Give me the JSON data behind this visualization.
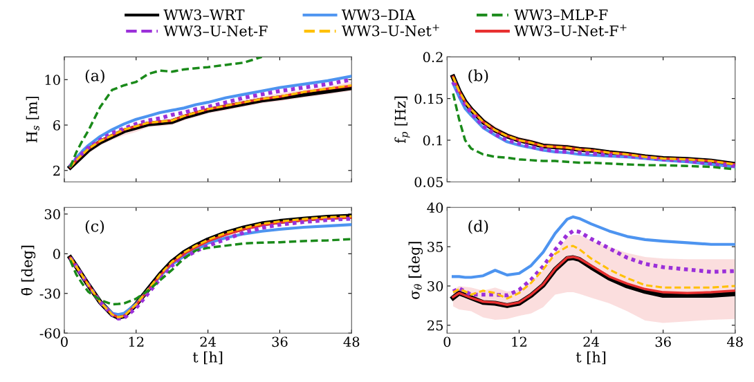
{
  "chart_data": [
    {
      "type": "line",
      "ylabel": "H$_{s}$ [m]",
      "annotations": [
        "(a)"
      ],
      "legend": "top",
      "tick_labels": "y",
      "xlim": [
        0,
        48
      ],
      "xticks": [
        0,
        12,
        24,
        36,
        48
      ],
      "ylim": [
        1,
        12
      ],
      "yticks": [
        2,
        6,
        10
      ],
      "x": [
        1,
        2,
        3,
        4,
        6,
        8,
        10,
        12,
        14,
        16,
        18,
        20,
        22,
        24,
        27,
        30,
        33,
        36,
        40,
        44,
        48
      ],
      "series": [
        {
          "name": "WW3–WRT",
          "color": "#000000",
          "line_style": "solid",
          "values": [
            2.3,
            2.8,
            3.3,
            3.8,
            4.5,
            5.0,
            5.5,
            5.8,
            6.1,
            6.2,
            6.3,
            6.7,
            7.0,
            7.3,
            7.6,
            7.9,
            8.2,
            8.4,
            8.7,
            9.0,
            9.3
          ]
        },
        {
          "name": "WW3–DIA",
          "color": "#4d94f0",
          "line_style": "solid",
          "values": [
            2.4,
            3.1,
            3.7,
            4.2,
            5.0,
            5.6,
            6.1,
            6.5,
            6.8,
            7.1,
            7.3,
            7.5,
            7.8,
            8.0,
            8.4,
            8.7,
            9.0,
            9.3,
            9.6,
            9.9,
            10.3
          ]
        },
        {
          "name": "WW3–MLP-F",
          "color": "#1a8a1a",
          "line_style": "dashed",
          "values": [
            2.3,
            3.6,
            4.6,
            5.5,
            7.6,
            9.1,
            9.5,
            9.8,
            10.5,
            10.8,
            10.7,
            10.9,
            11.0,
            11.1,
            11.3,
            11.5,
            12.0,
            null,
            null,
            null,
            null
          ]
        },
        {
          "name": "WW3–U-Net-F",
          "color": "#9b30d9",
          "line_style": "dotted",
          "values": [
            2.4,
            3.0,
            3.5,
            4.0,
            4.7,
            5.3,
            5.7,
            6.1,
            6.4,
            6.6,
            6.9,
            7.1,
            7.4,
            7.6,
            8.0,
            8.4,
            8.7,
            9.0,
            9.3,
            9.6,
            10.0
          ]
        },
        {
          "name": "WW3–U-Net$^{+}$",
          "color": "#ffc000",
          "line_style": "dashed",
          "values": [
            2.3,
            2.9,
            3.4,
            3.9,
            4.6,
            5.1,
            5.6,
            5.9,
            6.2,
            6.3,
            6.4,
            6.8,
            7.1,
            7.4,
            7.7,
            8.0,
            8.3,
            8.5,
            8.9,
            9.2,
            9.5
          ]
        },
        {
          "name": "WW3–U-Net-F$^{+}$",
          "color": "#e83030",
          "line_style": "solid",
          "values": [
            2.3,
            2.9,
            3.4,
            3.9,
            4.6,
            5.1,
            5.6,
            5.9,
            6.2,
            6.3,
            6.4,
            6.8,
            7.1,
            7.4,
            7.7,
            8.0,
            8.3,
            8.5,
            8.9,
            9.2,
            9.45
          ],
          "lower": [
            2.2,
            2.6,
            3.0,
            3.5,
            4.2,
            4.7,
            5.1,
            5.4,
            5.8,
            5.9,
            6.0,
            6.4,
            6.7,
            7.0,
            7.3,
            7.6,
            7.9,
            8.1,
            8.4,
            8.7,
            9.0
          ],
          "upper": [
            2.4,
            3.0,
            3.5,
            4.0,
            4.7,
            5.2,
            5.7,
            6.0,
            6.3,
            6.4,
            6.6,
            6.9,
            7.2,
            7.5,
            7.9,
            8.2,
            8.5,
            8.8,
            9.1,
            9.4,
            9.8
          ]
        }
      ]
    },
    {
      "type": "line",
      "ylabel": "f$_{p}$ [Hz]",
      "annotations": [
        "(b)"
      ],
      "tick_labels": "y",
      "xlim": [
        0,
        48
      ],
      "xticks": [
        0,
        12,
        24,
        36,
        48
      ],
      "ylim": [
        0.05,
        0.2
      ],
      "yticks": [
        0.05,
        0.1,
        0.15,
        0.2
      ],
      "x": [
        1,
        2,
        3,
        4,
        6,
        8,
        10,
        12,
        14,
        16,
        18,
        20,
        22,
        24,
        27,
        30,
        33,
        36,
        40,
        44,
        48
      ],
      "series": [
        {
          "color": "#000000",
          "line_style": "solid",
          "values": [
            0.176,
            0.159,
            0.146,
            0.137,
            0.122,
            0.112,
            0.105,
            0.1,
            0.097,
            0.093,
            0.092,
            0.091,
            0.089,
            0.088,
            0.085,
            0.083,
            0.08,
            0.078,
            0.077,
            0.075,
            0.071
          ]
        },
        {
          "color": "#4d94f0",
          "line_style": "solid",
          "values": [
            0.168,
            0.152,
            0.138,
            0.13,
            0.115,
            0.106,
            0.098,
            0.094,
            0.091,
            0.088,
            0.086,
            0.085,
            0.083,
            0.082,
            0.081,
            0.08,
            0.078,
            0.076,
            0.074,
            0.071,
            0.068
          ]
        },
        {
          "color": "#1a8a1a",
          "line_style": "dashed",
          "values": [
            0.156,
            0.125,
            0.1,
            0.09,
            0.083,
            0.08,
            0.079,
            0.077,
            0.076,
            0.075,
            0.075,
            0.074,
            0.073,
            0.073,
            0.072,
            0.071,
            0.07,
            0.07,
            0.069,
            0.068,
            0.065
          ]
        },
        {
          "color": "#9b30d9",
          "line_style": "dotted",
          "values": [
            0.17,
            0.156,
            0.143,
            0.133,
            0.117,
            0.107,
            0.1,
            0.096,
            0.092,
            0.089,
            0.087,
            0.086,
            0.085,
            0.084,
            0.082,
            0.081,
            0.079,
            0.077,
            0.075,
            0.072,
            0.069
          ]
        },
        {
          "color": "#ffc000",
          "line_style": "dashed",
          "values": [
            0.176,
            0.159,
            0.146,
            0.137,
            0.122,
            0.112,
            0.105,
            0.1,
            0.097,
            0.093,
            0.092,
            0.091,
            0.089,
            0.088,
            0.085,
            0.083,
            0.08,
            0.078,
            0.077,
            0.075,
            0.071
          ]
        },
        {
          "color": "#e83030",
          "line_style": "solid",
          "values": [
            0.176,
            0.159,
            0.146,
            0.137,
            0.122,
            0.112,
            0.105,
            0.1,
            0.097,
            0.093,
            0.092,
            0.091,
            0.089,
            0.088,
            0.085,
            0.083,
            0.08,
            0.078,
            0.077,
            0.075,
            0.071
          ],
          "lower": [
            0.174,
            0.157,
            0.144,
            0.135,
            0.12,
            0.11,
            0.103,
            0.098,
            0.095,
            0.091,
            0.09,
            0.089,
            0.087,
            0.086,
            0.083,
            0.081,
            0.078,
            0.076,
            0.075,
            0.073,
            0.069
          ],
          "upper": [
            0.178,
            0.162,
            0.15,
            0.141,
            0.127,
            0.117,
            0.109,
            0.104,
            0.101,
            0.097,
            0.096,
            0.095,
            0.093,
            0.091,
            0.088,
            0.086,
            0.083,
            0.081,
            0.079,
            0.077,
            0.073
          ]
        }
      ]
    },
    {
      "type": "line",
      "xlabel": "t [h]",
      "ylabel": "θ̄ [deg]",
      "annotations": [
        "(c)"
      ],
      "xlim": [
        0,
        48
      ],
      "xticks": [
        0,
        12,
        24,
        36,
        48
      ],
      "ylim": [
        -60,
        35
      ],
      "yticks": [
        -60,
        -30,
        0,
        30
      ],
      "x": [
        1,
        2,
        3,
        4,
        6,
        8,
        9,
        10,
        12,
        14,
        16,
        18,
        20,
        22,
        24,
        27,
        30,
        33,
        36,
        40,
        44,
        48
      ],
      "series": [
        {
          "color": "#000000",
          "line_style": "solid",
          "values": [
            -3,
            -9.6,
            -16.6,
            -23.5,
            -36.6,
            -46,
            -48,
            -47,
            -38.3,
            -27,
            -15.7,
            -6.1,
            0.9,
            6.1,
            10.5,
            15.7,
            19.5,
            22.6,
            24.4,
            26.2,
            27.6,
            28.3
          ]
        },
        {
          "color": "#4d94f0",
          "line_style": "solid",
          "values": [
            null,
            null,
            null,
            null,
            -36.6,
            -45,
            -46,
            -45,
            -38,
            -27.5,
            -17,
            -8,
            -2,
            3,
            8,
            12,
            15,
            17,
            18.5,
            20,
            21,
            22
          ]
        },
        {
          "color": "#1a8a1a",
          "line_style": "dashed",
          "values": [
            -5,
            -15.7,
            -22.6,
            -28.7,
            -35,
            -38.3,
            -38,
            -37.5,
            -34,
            -27.9,
            -20,
            -12.2,
            -3.5,
            2.6,
            4.4,
            6.1,
            7.8,
            8.4,
            8.7,
            9.6,
            10.1,
            11
          ]
        },
        {
          "color": "#9b30d9",
          "line_style": "dotted",
          "values": [
            -3,
            -9.6,
            -16.6,
            -23.5,
            -36.6,
            -46,
            -49,
            -48.5,
            -41,
            -30,
            -19,
            -9,
            -3,
            2,
            6,
            11,
            16,
            19.5,
            22,
            24,
            25.5,
            26.5
          ]
        },
        {
          "color": "#ffc000",
          "line_style": "dashed",
          "values": [
            -3,
            -9.6,
            -16.6,
            -23.5,
            -36.6,
            -46,
            -48,
            -47,
            -38.3,
            -27,
            -15.7,
            -6.1,
            0.9,
            6.1,
            10.5,
            15.7,
            19.5,
            22.6,
            24.4,
            26.2,
            27.6,
            28.3
          ]
        },
        {
          "color": "#e83030",
          "line_style": "solid",
          "values": [
            -3,
            -9.6,
            -16.6,
            -23.5,
            -36.6,
            -46,
            -48,
            -47,
            -38.5,
            -27.5,
            -16.5,
            -7,
            0,
            5,
            9.5,
            14.5,
            18.5,
            21.5,
            23.5,
            25.3,
            26.5,
            27.3
          ],
          "lower": [
            -4,
            -10.6,
            -17.6,
            -24.5,
            -37.6,
            -47,
            -49,
            -48,
            -40,
            -29,
            -18,
            -9,
            -2,
            3,
            8,
            13,
            17,
            20,
            22.5,
            24.5,
            25.8,
            26.5
          ],
          "upper": [
            -2,
            -8.6,
            -15.6,
            -22.5,
            -35.6,
            -45,
            -47,
            -46,
            -37,
            -25.5,
            -14.5,
            -5,
            2,
            7,
            11.5,
            16.5,
            20.5,
            23.5,
            25.3,
            27,
            28.3,
            29
          ]
        }
      ]
    },
    {
      "type": "line",
      "xlabel": "t [h]",
      "ylabel": "σ$_{θ}$ [deg]",
      "annotations": [
        "(d)"
      ],
      "xlim": [
        0,
        48
      ],
      "xticks": [
        0,
        12,
        24,
        36,
        48
      ],
      "ylim": [
        24,
        40
      ],
      "yticks": [
        25,
        30,
        35,
        40
      ],
      "x": [
        1,
        2,
        3,
        4,
        6,
        8,
        10,
        12,
        14,
        16,
        18,
        20,
        21,
        22,
        24,
        27,
        30,
        33,
        36,
        40,
        44,
        48
      ],
      "series": [
        {
          "color": "#000000",
          "line_style": "solid",
          "values": [
            28.5,
            29.1,
            28.8,
            28.5,
            27.9,
            27.8,
            27.5,
            27.8,
            28.8,
            30.1,
            32.1,
            33.5,
            33.6,
            33.4,
            32.4,
            31.0,
            30.0,
            29.3,
            28.8,
            28.8,
            28.8,
            29.0
          ]
        },
        {
          "color": "#4d94f0",
          "line_style": "solid",
          "values": [
            31.2,
            31.2,
            31.1,
            31.1,
            31.3,
            32.0,
            31.4,
            31.6,
            32.6,
            34.3,
            36.7,
            38.5,
            38.8,
            38.6,
            37.9,
            37.0,
            36.3,
            35.9,
            35.7,
            35.5,
            35.3,
            35.3
          ]
        },
        {
          "color": "#1a8a1a",
          "line_style": "dashed",
          "values": [
            null,
            null,
            null,
            null,
            null,
            null,
            null,
            null,
            null,
            null,
            null,
            null,
            null,
            null,
            null,
            null,
            null,
            null,
            null,
            null,
            null,
            null
          ]
        },
        {
          "color": "#9b30d9",
          "line_style": "dotted",
          "values": [
            29.3,
            29.7,
            29.3,
            28.9,
            28.9,
            28.9,
            28.8,
            29.5,
            30.8,
            32.5,
            34.6,
            36.5,
            37.0,
            36.9,
            36.0,
            34.8,
            33.6,
            32.8,
            32.4,
            32.1,
            31.8,
            31.9
          ]
        },
        {
          "color": "#ffc000",
          "line_style": "dashed",
          "values": [
            29.2,
            29.6,
            29.3,
            28.9,
            29.4,
            29.1,
            28.4,
            29.1,
            30.4,
            32.1,
            34.1,
            35.0,
            35.1,
            34.7,
            33.5,
            32.1,
            31.0,
            30.1,
            29.8,
            29.8,
            29.8,
            30.0
          ]
        },
        {
          "color": "#e83030",
          "line_style": "solid",
          "values": [
            28.6,
            29.1,
            28.8,
            28.5,
            28.0,
            27.9,
            27.6,
            27.9,
            28.9,
            30.2,
            32.2,
            33.6,
            33.7,
            33.5,
            32.6,
            31.2,
            30.3,
            29.6,
            29.2,
            29.1,
            29.2,
            29.4
          ],
          "lower": [
            27.4,
            27.0,
            26.9,
            26.8,
            26.0,
            25.7,
            25.8,
            26.2,
            26.5,
            27.3,
            28.9,
            29.2,
            29.2,
            29.0,
            28.5,
            27.8,
            26.8,
            25.6,
            25.3,
            25.5,
            25.7,
            25.8
          ],
          "upper": [
            29.5,
            30.0,
            29.9,
            29.8,
            29.4,
            29.8,
            29.3,
            29.5,
            30.5,
            32.0,
            34.0,
            36.2,
            36.5,
            36.5,
            35.8,
            35.0,
            34.2,
            33.7,
            33.5,
            33.4,
            33.4,
            33.4
          ]
        }
      ]
    }
  ]
}
